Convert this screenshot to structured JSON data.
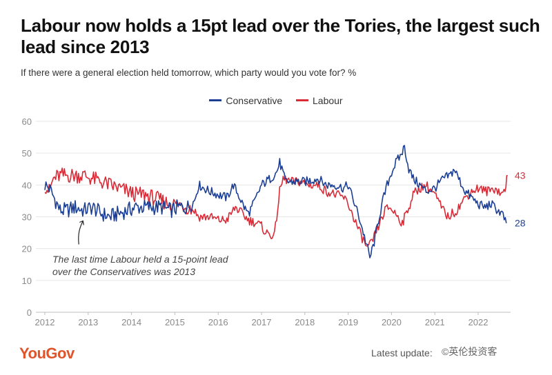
{
  "title": "Labour now holds a 15pt lead over the Tories, the largest such lead since 2013",
  "subtitle": "If there were a general election held tomorrow, which party would you vote for? %",
  "logo": "YouGov",
  "footer": "Latest update:",
  "watermark": "©英伦投资客",
  "colors": {
    "conservative": "#1b3e94",
    "labour": "#d92b37",
    "grid": "#e6e6e6",
    "axis_text": "#8a8a8a"
  },
  "chart_data": {
    "type": "line",
    "title": "Labour now holds a 15pt lead over the Tories, the largest such lead since 2013",
    "subtitle": "If there were a general election held tomorrow, which party would you vote for? %",
    "xlim": [
      2012,
      2022.75
    ],
    "ylim": [
      0,
      60
    ],
    "x_ticks": [
      2012,
      2013,
      2014,
      2015,
      2016,
      2017,
      2018,
      2019,
      2020,
      2021,
      2022
    ],
    "x_tick_labels": [
      "2012",
      "2013",
      "2014",
      "2015",
      "2016",
      "2017",
      "2018",
      "2019",
      "2020",
      "2021",
      "2022"
    ],
    "y_ticks": [
      0,
      10,
      20,
      30,
      40,
      50,
      60
    ],
    "y_tick_labels": [
      "0",
      "10",
      "20",
      "30",
      "40",
      "50",
      "60"
    ],
    "grid": "horizontal",
    "legend_position": "top-center",
    "series": [
      {
        "name": "Conservative",
        "color": "#1b3e94",
        "end_label": "28",
        "points": [
          [
            2012.0,
            40
          ],
          [
            2012.1,
            39
          ],
          [
            2012.25,
            35
          ],
          [
            2012.35,
            32
          ],
          [
            2012.5,
            32
          ],
          [
            2012.7,
            33
          ],
          [
            2012.9,
            32
          ],
          [
            2013.1,
            33
          ],
          [
            2013.3,
            31
          ],
          [
            2013.5,
            30
          ],
          [
            2013.7,
            31
          ],
          [
            2013.9,
            32
          ],
          [
            2014.1,
            33
          ],
          [
            2014.3,
            33
          ],
          [
            2014.5,
            33
          ],
          [
            2014.7,
            33
          ],
          [
            2014.9,
            32
          ],
          [
            2015.1,
            33
          ],
          [
            2015.3,
            33
          ],
          [
            2015.45,
            35
          ],
          [
            2015.55,
            40
          ],
          [
            2015.8,
            38
          ],
          [
            2016.0,
            37
          ],
          [
            2016.2,
            36
          ],
          [
            2016.35,
            40
          ],
          [
            2016.5,
            36
          ],
          [
            2016.6,
            33
          ],
          [
            2016.7,
            31
          ],
          [
            2016.85,
            35
          ],
          [
            2017.0,
            40
          ],
          [
            2017.2,
            42
          ],
          [
            2017.35,
            44
          ],
          [
            2017.42,
            47
          ],
          [
            2017.47,
            45
          ],
          [
            2017.55,
            41
          ],
          [
            2017.8,
            41
          ],
          [
            2018.0,
            41
          ],
          [
            2018.3,
            42
          ],
          [
            2018.5,
            40
          ],
          [
            2018.7,
            40
          ],
          [
            2018.9,
            39
          ],
          [
            2019.0,
            40
          ],
          [
            2019.1,
            36
          ],
          [
            2019.25,
            30
          ],
          [
            2019.35,
            25
          ],
          [
            2019.45,
            20
          ],
          [
            2019.5,
            17
          ],
          [
            2019.6,
            22
          ],
          [
            2019.7,
            29
          ],
          [
            2019.8,
            35
          ],
          [
            2019.9,
            40
          ],
          [
            2020.0,
            44
          ],
          [
            2020.1,
            47
          ],
          [
            2020.2,
            49
          ],
          [
            2020.3,
            52
          ],
          [
            2020.4,
            45
          ],
          [
            2020.5,
            42
          ],
          [
            2020.65,
            40
          ],
          [
            2020.8,
            38
          ],
          [
            2021.0,
            39
          ],
          [
            2021.2,
            42
          ],
          [
            2021.35,
            43
          ],
          [
            2021.45,
            45
          ],
          [
            2021.55,
            42
          ],
          [
            2021.7,
            38
          ],
          [
            2021.85,
            36
          ],
          [
            2022.0,
            34
          ],
          [
            2022.15,
            33
          ],
          [
            2022.3,
            34
          ],
          [
            2022.45,
            32
          ],
          [
            2022.55,
            31
          ],
          [
            2022.65,
            28
          ]
        ]
      },
      {
        "name": "Labour",
        "color": "#d92b37",
        "end_label": "43",
        "points": [
          [
            2012.0,
            40
          ],
          [
            2012.1,
            38
          ],
          [
            2012.2,
            42
          ],
          [
            2012.35,
            43
          ],
          [
            2012.5,
            43
          ],
          [
            2012.7,
            43
          ],
          [
            2012.9,
            43
          ],
          [
            2013.1,
            42
          ],
          [
            2013.3,
            41
          ],
          [
            2013.5,
            40
          ],
          [
            2013.7,
            39
          ],
          [
            2013.9,
            38
          ],
          [
            2014.1,
            37
          ],
          [
            2014.3,
            37
          ],
          [
            2014.5,
            36
          ],
          [
            2014.7,
            35
          ],
          [
            2014.9,
            34
          ],
          [
            2015.1,
            34
          ],
          [
            2015.3,
            33
          ],
          [
            2015.45,
            32
          ],
          [
            2015.55,
            30
          ],
          [
            2015.8,
            30
          ],
          [
            2016.0,
            29
          ],
          [
            2016.2,
            29
          ],
          [
            2016.3,
            31
          ],
          [
            2016.4,
            33
          ],
          [
            2016.55,
            31
          ],
          [
            2016.7,
            29
          ],
          [
            2016.9,
            28
          ],
          [
            2017.0,
            27
          ],
          [
            2017.1,
            25
          ],
          [
            2017.3,
            24
          ],
          [
            2017.35,
            30
          ],
          [
            2017.42,
            38
          ],
          [
            2017.5,
            42
          ],
          [
            2017.7,
            41
          ],
          [
            2017.9,
            41
          ],
          [
            2018.1,
            40
          ],
          [
            2018.3,
            40
          ],
          [
            2018.5,
            38
          ],
          [
            2018.7,
            37
          ],
          [
            2018.9,
            36
          ],
          [
            2019.0,
            34
          ],
          [
            2019.15,
            29
          ],
          [
            2019.3,
            24
          ],
          [
            2019.45,
            20
          ],
          [
            2019.55,
            22
          ],
          [
            2019.7,
            27
          ],
          [
            2019.85,
            32
          ],
          [
            2019.95,
            33
          ],
          [
            2020.1,
            31
          ],
          [
            2020.25,
            28
          ],
          [
            2020.4,
            33
          ],
          [
            2020.5,
            37
          ],
          [
            2020.65,
            39
          ],
          [
            2020.8,
            40
          ],
          [
            2021.0,
            37
          ],
          [
            2021.15,
            33
          ],
          [
            2021.3,
            30
          ],
          [
            2021.5,
            32
          ],
          [
            2021.7,
            36
          ],
          [
            2021.85,
            38
          ],
          [
            2022.0,
            39
          ],
          [
            2022.2,
            38
          ],
          [
            2022.4,
            39
          ],
          [
            2022.55,
            37
          ],
          [
            2022.62,
            39
          ],
          [
            2022.68,
            43
          ]
        ]
      }
    ],
    "annotation": {
      "text_lines": [
        "The last time Labour held a 15-point lead",
        "over the Conservatives was 2013"
      ],
      "target": [
        2012.88,
        30
      ]
    }
  }
}
